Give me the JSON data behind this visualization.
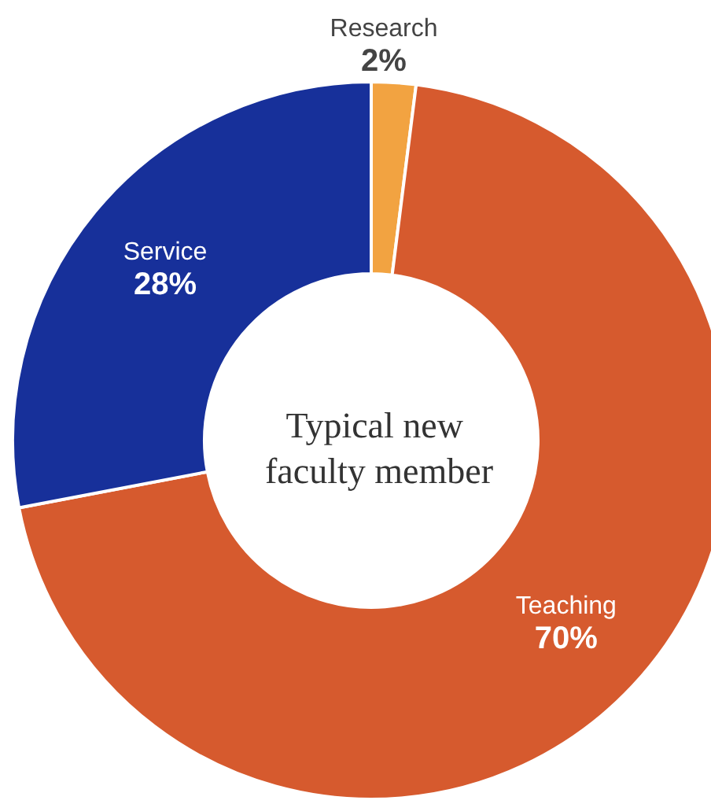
{
  "chart_data": {
    "type": "donut",
    "title": "Typical new faculty member",
    "categories": [
      "Research",
      "Teaching",
      "Service"
    ],
    "values": [
      2,
      70,
      28
    ],
    "colors": [
      "#f2a341",
      "#d65a2e",
      "#17309a"
    ],
    "value_labels": [
      "2%",
      "70%",
      "28%"
    ]
  }
}
